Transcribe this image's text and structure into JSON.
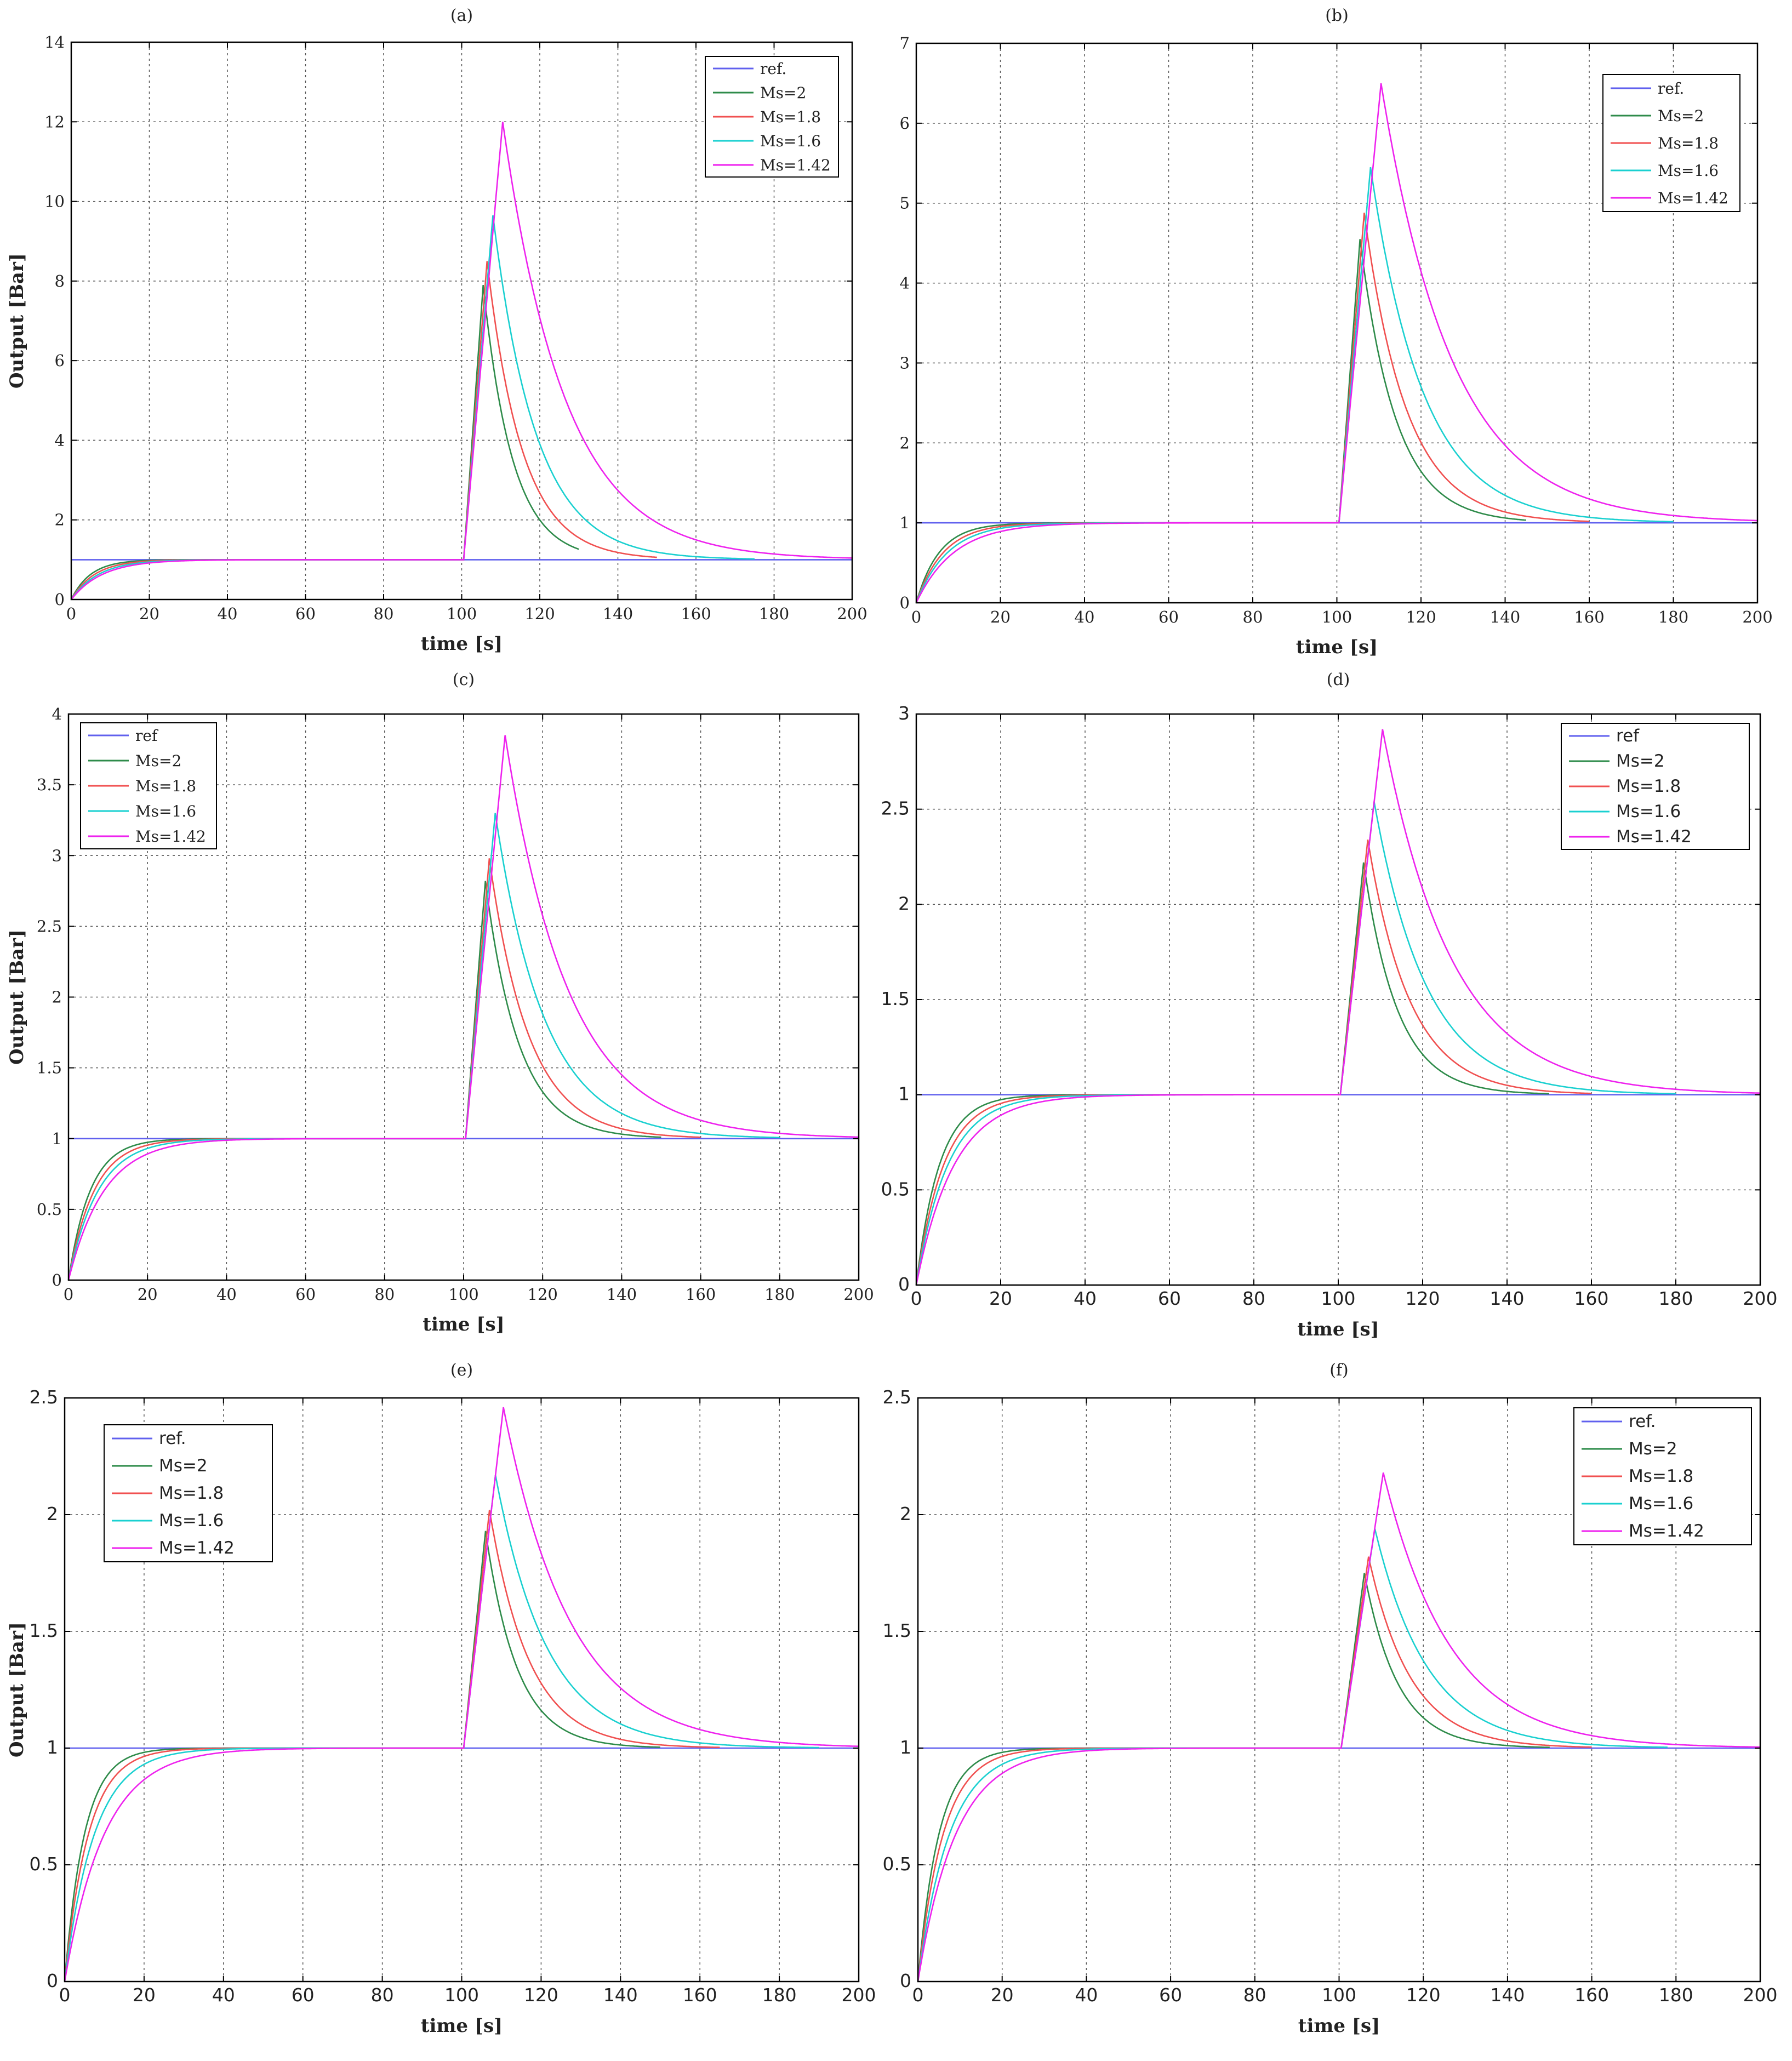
{
  "chart_data": [
    {
      "id": "a",
      "title": "(a)",
      "type": "line",
      "xlabel": "time [s]",
      "ylabel": "Output [Bar]",
      "xlim": [
        0,
        200
      ],
      "ylim": [
        0,
        14
      ],
      "xticks": [
        "0",
        "20",
        "40",
        "60",
        "80",
        "100",
        "120",
        "140",
        "160",
        "180",
        "200"
      ],
      "yticks": [
        "0",
        "2",
        "4",
        "6",
        "8",
        "10",
        "12",
        "14"
      ],
      "legend": {
        "position": "top-right",
        "labels": [
          "ref.",
          "Ms=2",
          "Ms=1.8",
          "Ms=1.6",
          "Ms=1.42"
        ]
      },
      "grid": true,
      "series": [
        {
          "name": "ref.",
          "color": "#6060ee",
          "ref_value": 1,
          "end_time": 200
        },
        {
          "name": "Ms=2",
          "color": "#2e8b4a",
          "rise_tau": 5.0,
          "peak": 7.9,
          "peak_time": 105.5,
          "decay_tau": 7.5,
          "end_time": 130
        },
        {
          "name": "Ms=1.8",
          "color": "#f05050",
          "rise_tau": 6.0,
          "peak": 8.5,
          "peak_time": 106.5,
          "decay_tau": 9.0,
          "end_time": 150
        },
        {
          "name": "Ms=1.6",
          "color": "#1ad0d0",
          "rise_tau": 7.0,
          "peak": 9.65,
          "peak_time": 108,
          "decay_tau": 11.0,
          "end_time": 175
        },
        {
          "name": "Ms=1.42",
          "color": "#ee22ee",
          "rise_tau": 8.0,
          "peak": 12.0,
          "peak_time": 110.5,
          "decay_tau": 16.0,
          "end_time": 200
        }
      ],
      "disturbance_time": 100.5
    },
    {
      "id": "b",
      "title": "(b)",
      "type": "line",
      "xlabel": "time [s]",
      "ylabel": "",
      "xlim": [
        0,
        200
      ],
      "ylim": [
        0,
        7
      ],
      "xticks": [
        "0",
        "20",
        "40",
        "60",
        "80",
        "100",
        "120",
        "140",
        "160",
        "180",
        "200"
      ],
      "yticks": [
        "0",
        "1",
        "2",
        "3",
        "4",
        "5",
        "6",
        "7"
      ],
      "legend": {
        "position": "top-right",
        "labels": [
          "ref.",
          "Ms=2",
          "Ms=1.8",
          "Ms=1.6",
          "Ms=1.42"
        ]
      },
      "grid": true,
      "series": [
        {
          "name": "ref.",
          "color": "#6060ee",
          "ref_value": 1,
          "end_time": 200
        },
        {
          "name": "Ms=2",
          "color": "#2e8b4a",
          "rise_tau": 5.5,
          "peak": 4.55,
          "peak_time": 105.5,
          "decay_tau": 8.5,
          "end_time": 145
        },
        {
          "name": "Ms=1.8",
          "color": "#f05050",
          "rise_tau": 6.5,
          "peak": 4.88,
          "peak_time": 106.5,
          "decay_tau": 10.0,
          "end_time": 160
        },
        {
          "name": "Ms=1.6",
          "color": "#1ad0d0",
          "rise_tau": 7.5,
          "peak": 5.45,
          "peak_time": 108,
          "decay_tau": 12.5,
          "end_time": 180
        },
        {
          "name": "Ms=1.42",
          "color": "#ee22ee",
          "rise_tau": 9.0,
          "peak": 6.5,
          "peak_time": 110.5,
          "decay_tau": 17.0,
          "end_time": 200
        }
      ],
      "disturbance_time": 100.5
    },
    {
      "id": "c",
      "title": "(c)",
      "type": "line",
      "xlabel": "time [s]",
      "ylabel": "Output [Bar]",
      "xlim": [
        0,
        200
      ],
      "ylim": [
        0,
        4
      ],
      "xticks": [
        "0",
        "20",
        "40",
        "60",
        "80",
        "100",
        "120",
        "140",
        "160",
        "180",
        "200"
      ],
      "yticks": [
        "0",
        "0.5",
        "1",
        "1.5",
        "2",
        "2.5",
        "3",
        "3.5",
        "4"
      ],
      "legend": {
        "position": "top-left",
        "labels": [
          "ref",
          "Ms=2",
          "Ms=1.8",
          "Ms=1.6",
          "Ms=1.42"
        ]
      },
      "grid": true,
      "series": [
        {
          "name": "ref",
          "color": "#6060ee",
          "ref_value": 1,
          "end_time": 200
        },
        {
          "name": "Ms=2",
          "color": "#2e8b4a",
          "rise_tau": 5.5,
          "peak": 2.82,
          "peak_time": 105.5,
          "decay_tau": 8.5,
          "end_time": 150
        },
        {
          "name": "Ms=1.8",
          "color": "#f05050",
          "rise_tau": 6.5,
          "peak": 2.98,
          "peak_time": 106.5,
          "decay_tau": 10.0,
          "end_time": 160
        },
        {
          "name": "Ms=1.6",
          "color": "#1ad0d0",
          "rise_tau": 7.5,
          "peak": 3.3,
          "peak_time": 108,
          "decay_tau": 12.5,
          "end_time": 180
        },
        {
          "name": "Ms=1.42",
          "color": "#ee22ee",
          "rise_tau": 9.0,
          "peak": 3.85,
          "peak_time": 110.5,
          "decay_tau": 16.0,
          "end_time": 200
        }
      ],
      "disturbance_time": 100.5
    },
    {
      "id": "d",
      "title": "(d)",
      "type": "line",
      "xlabel": "time [s]",
      "ylabel": "",
      "xlim": [
        0,
        200
      ],
      "ylim": [
        0,
        3
      ],
      "xticks": [
        "0",
        "20",
        "40",
        "60",
        "80",
        "100",
        "120",
        "140",
        "160",
        "180",
        "200"
      ],
      "yticks": [
        "0",
        "0.5",
        "1",
        "1.5",
        "2",
        "2.5",
        "3"
      ],
      "legend": {
        "position": "top-right",
        "labels": [
          "ref",
          "Ms=2",
          "Ms=1.8",
          "Ms=1.6",
          "Ms=1.42"
        ]
      },
      "grid": true,
      "series": [
        {
          "name": "ref",
          "color": "#6060ee",
          "ref_value": 1,
          "end_time": 200
        },
        {
          "name": "Ms=2",
          "color": "#2e8b4a",
          "rise_tau": 5.5,
          "peak": 2.22,
          "peak_time": 106,
          "decay_tau": 8.0,
          "end_time": 150
        },
        {
          "name": "Ms=1.8",
          "color": "#f05050",
          "rise_tau": 6.5,
          "peak": 2.34,
          "peak_time": 107,
          "decay_tau": 10.0,
          "end_time": 160
        },
        {
          "name": "Ms=1.6",
          "color": "#1ad0d0",
          "rise_tau": 7.5,
          "peak": 2.54,
          "peak_time": 108.5,
          "decay_tau": 12.5,
          "end_time": 180
        },
        {
          "name": "Ms=1.42",
          "color": "#ee22ee",
          "rise_tau": 9.0,
          "peak": 2.92,
          "peak_time": 110.5,
          "decay_tau": 16.5,
          "end_time": 200
        }
      ],
      "disturbance_time": 100.5
    },
    {
      "id": "e",
      "title": "(e)",
      "type": "line",
      "xlabel": "time [s]",
      "ylabel": "Output [Bar]",
      "xlim": [
        0,
        200
      ],
      "ylim": [
        0,
        2.5
      ],
      "xticks": [
        "0",
        "20",
        "40",
        "60",
        "80",
        "100",
        "120",
        "140",
        "160",
        "180",
        "200"
      ],
      "yticks": [
        "0",
        "0.5",
        "1",
        "1.5",
        "2",
        "2.5"
      ],
      "legend": {
        "position": "top-left",
        "labels": [
          "ref.",
          "Ms=2",
          "Ms=1.8",
          "Ms=1.6",
          "Ms=1.42"
        ]
      },
      "grid": true,
      "series": [
        {
          "name": "ref.",
          "color": "#6060ee",
          "ref_value": 1,
          "end_time": 200
        },
        {
          "name": "Ms=2",
          "color": "#2e8b4a",
          "rise_tau": 5.0,
          "peak": 1.93,
          "peak_time": 106,
          "decay_tau": 8.0,
          "end_time": 150
        },
        {
          "name": "Ms=1.8",
          "color": "#f05050",
          "rise_tau": 6.0,
          "peak": 2.02,
          "peak_time": 107,
          "decay_tau": 10.0,
          "end_time": 165
        },
        {
          "name": "Ms=1.6",
          "color": "#1ad0d0",
          "rise_tau": 7.5,
          "peak": 2.17,
          "peak_time": 108.5,
          "decay_tau": 13.0,
          "end_time": 190
        },
        {
          "name": "Ms=1.42",
          "color": "#ee22ee",
          "rise_tau": 10.0,
          "peak": 2.46,
          "peak_time": 110.5,
          "decay_tau": 17.0,
          "end_time": 200
        }
      ],
      "disturbance_time": 100.5
    },
    {
      "id": "f",
      "title": "(f)",
      "type": "line",
      "xlabel": "time [s]",
      "ylabel": "",
      "xlim": [
        0,
        200
      ],
      "ylim": [
        0,
        2.5
      ],
      "xticks": [
        "0",
        "20",
        "40",
        "60",
        "80",
        "100",
        "120",
        "140",
        "160",
        "180",
        "200"
      ],
      "yticks": [
        "0",
        "0.5",
        "1",
        "1.5",
        "2",
        "2.5"
      ],
      "legend": {
        "position": "top-right",
        "labels": [
          "ref.",
          "Ms=2",
          "Ms=1.8",
          "Ms=1.6",
          "Ms=1.42"
        ]
      },
      "grid": true,
      "series": [
        {
          "name": "ref.",
          "color": "#6060ee",
          "ref_value": 1,
          "end_time": 200
        },
        {
          "name": "Ms=2",
          "color": "#2e8b4a",
          "rise_tau": 5.0,
          "peak": 1.75,
          "peak_time": 106,
          "decay_tau": 8.0,
          "end_time": 150
        },
        {
          "name": "Ms=1.8",
          "color": "#f05050",
          "rise_tau": 6.0,
          "peak": 1.82,
          "peak_time": 107,
          "decay_tau": 10.0,
          "end_time": 160
        },
        {
          "name": "Ms=1.6",
          "color": "#1ad0d0",
          "rise_tau": 7.5,
          "peak": 1.94,
          "peak_time": 108.5,
          "decay_tau": 12.5,
          "end_time": 178
        },
        {
          "name": "Ms=1.42",
          "color": "#ee22ee",
          "rise_tau": 9.0,
          "peak": 2.18,
          "peak_time": 110.5,
          "decay_tau": 16.0,
          "end_time": 200
        }
      ],
      "disturbance_time": 100.5
    }
  ]
}
